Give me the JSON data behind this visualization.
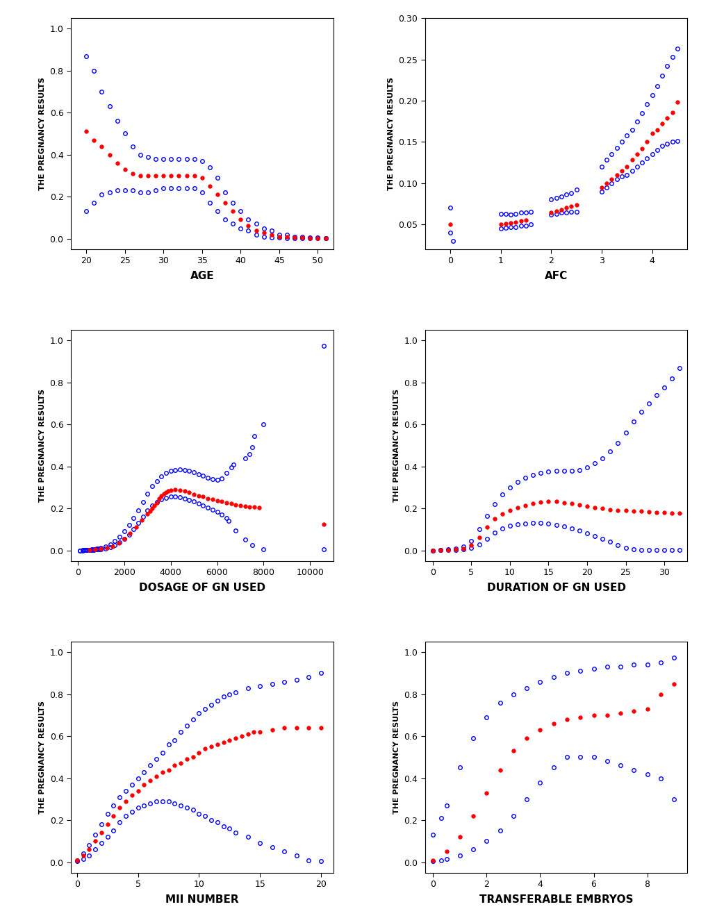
{
  "background_color": "#ffffff",
  "ylabel": "THE PREGNANCY RESULTS",
  "plots": [
    {
      "xlabel": "AGE",
      "xlim": [
        18,
        52
      ],
      "ylim": [
        -0.05,
        1.05
      ],
      "yticks": [
        0.0,
        0.2,
        0.4,
        0.6,
        0.8,
        1.0
      ],
      "xticks": [
        20,
        25,
        30,
        35,
        40,
        45,
        50
      ],
      "red_x": [
        20,
        21,
        22,
        23,
        24,
        25,
        26,
        27,
        28,
        29,
        30,
        31,
        32,
        33,
        34,
        35,
        36,
        37,
        38,
        39,
        40,
        41,
        42,
        43,
        44,
        45,
        46,
        47,
        48,
        49,
        50,
        51
      ],
      "red_y": [
        0.51,
        0.47,
        0.44,
        0.4,
        0.36,
        0.33,
        0.31,
        0.3,
        0.3,
        0.3,
        0.3,
        0.3,
        0.3,
        0.3,
        0.3,
        0.29,
        0.25,
        0.21,
        0.17,
        0.13,
        0.09,
        0.06,
        0.04,
        0.03,
        0.02,
        0.01,
        0.01,
        0.005,
        0.005,
        0.003,
        0.002,
        0.001
      ],
      "blue_upper_x": [
        20,
        21,
        22,
        23,
        24,
        25,
        26,
        27,
        28,
        29,
        30,
        31,
        32,
        33,
        34,
        35,
        36,
        37,
        38,
        39,
        40,
        41,
        42,
        43,
        44,
        45,
        46,
        47,
        48,
        49,
        50,
        51
      ],
      "blue_upper_y": [
        0.87,
        0.8,
        0.7,
        0.63,
        0.56,
        0.5,
        0.44,
        0.4,
        0.39,
        0.38,
        0.38,
        0.38,
        0.38,
        0.38,
        0.38,
        0.37,
        0.34,
        0.29,
        0.22,
        0.17,
        0.13,
        0.09,
        0.07,
        0.05,
        0.04,
        0.02,
        0.02,
        0.01,
        0.01,
        0.007,
        0.005,
        0.003
      ],
      "blue_lower_x": [
        20,
        21,
        22,
        23,
        24,
        25,
        26,
        27,
        28,
        29,
        30,
        31,
        32,
        33,
        34,
        35,
        36,
        37,
        38,
        39,
        40,
        41,
        42,
        43,
        44,
        45,
        46,
        47,
        48,
        49,
        50,
        51
      ],
      "blue_lower_y": [
        0.13,
        0.17,
        0.21,
        0.22,
        0.23,
        0.23,
        0.23,
        0.22,
        0.22,
        0.23,
        0.24,
        0.24,
        0.24,
        0.24,
        0.24,
        0.22,
        0.17,
        0.13,
        0.09,
        0.07,
        0.05,
        0.04,
        0.02,
        0.01,
        0.007,
        0.005,
        0.003,
        0.002,
        0.001,
        0.001,
        0.001,
        0.001
      ]
    },
    {
      "xlabel": "AFC",
      "xlim": [
        -0.5,
        4.7
      ],
      "ylim": [
        0.02,
        0.3
      ],
      "yticks": [
        0.05,
        0.1,
        0.15,
        0.2,
        0.25,
        0.3
      ],
      "xticks": [
        0,
        1,
        2,
        3,
        4
      ],
      "red_x": [
        0.0,
        1.0,
        1.1,
        1.2,
        1.3,
        1.4,
        1.5,
        2.0,
        2.1,
        2.2,
        2.3,
        2.4,
        2.5,
        3.0,
        3.1,
        3.2,
        3.3,
        3.4,
        3.5,
        3.6,
        3.7,
        3.8,
        3.9,
        4.0,
        4.1,
        4.2,
        4.3,
        4.4,
        4.5
      ],
      "red_y": [
        0.05,
        0.05,
        0.051,
        0.052,
        0.053,
        0.054,
        0.055,
        0.064,
        0.066,
        0.068,
        0.07,
        0.072,
        0.074,
        0.095,
        0.1,
        0.105,
        0.11,
        0.115,
        0.12,
        0.128,
        0.135,
        0.142,
        0.15,
        0.16,
        0.165,
        0.172,
        0.179,
        0.186,
        0.198
      ],
      "blue_upper_x": [
        0.0,
        0.05,
        1.0,
        1.1,
        1.2,
        1.3,
        1.4,
        1.5,
        1.6,
        2.0,
        2.1,
        2.2,
        2.3,
        2.4,
        2.5,
        3.0,
        3.1,
        3.2,
        3.3,
        3.4,
        3.5,
        3.6,
        3.7,
        3.8,
        3.9,
        4.0,
        4.1,
        4.2,
        4.3,
        4.4,
        4.5
      ],
      "blue_upper_y": [
        0.07,
        0.03,
        0.063,
        0.063,
        0.062,
        0.063,
        0.064,
        0.064,
        0.065,
        0.08,
        0.082,
        0.084,
        0.086,
        0.088,
        0.092,
        0.12,
        0.128,
        0.135,
        0.143,
        0.15,
        0.158,
        0.165,
        0.175,
        0.185,
        0.196,
        0.207,
        0.218,
        0.23,
        0.242,
        0.253,
        0.263
      ],
      "blue_lower_x": [
        0.0,
        1.0,
        1.1,
        1.2,
        1.3,
        1.4,
        1.5,
        1.6,
        2.0,
        2.1,
        2.2,
        2.3,
        2.4,
        2.5,
        3.0,
        3.1,
        3.2,
        3.3,
        3.4,
        3.5,
        3.6,
        3.7,
        3.8,
        3.9,
        4.0,
        4.1,
        4.2,
        4.3,
        4.4,
        4.5
      ],
      "blue_lower_y": [
        0.04,
        0.045,
        0.046,
        0.047,
        0.047,
        0.048,
        0.048,
        0.05,
        0.062,
        0.063,
        0.064,
        0.064,
        0.065,
        0.065,
        0.09,
        0.095,
        0.1,
        0.105,
        0.108,
        0.11,
        0.115,
        0.12,
        0.125,
        0.13,
        0.135,
        0.14,
        0.145,
        0.148,
        0.15,
        0.151
      ]
    },
    {
      "xlabel": "DOSAGE OF GN USED",
      "xlim": [
        -300,
        11000
      ],
      "ylim": [
        -0.05,
        1.05
      ],
      "yticks": [
        0.0,
        0.2,
        0.4,
        0.6,
        0.8,
        1.0
      ],
      "xticks": [
        0,
        2000,
        4000,
        6000,
        8000,
        10000
      ],
      "red_x": [
        500,
        750,
        1000,
        1250,
        1500,
        1750,
        2000,
        2250,
        2500,
        2750,
        3000,
        3100,
        3200,
        3300,
        3400,
        3500,
        3600,
        3700,
        3800,
        3900,
        4000,
        4200,
        4400,
        4600,
        4800,
        5000,
        5200,
        5400,
        5600,
        5800,
        6000,
        6200,
        6400,
        6600,
        6800,
        7000,
        7200,
        7400,
        7600,
        7800,
        10600
      ],
      "red_y": [
        0.003,
        0.005,
        0.008,
        0.012,
        0.02,
        0.035,
        0.055,
        0.08,
        0.11,
        0.145,
        0.175,
        0.188,
        0.2,
        0.214,
        0.228,
        0.248,
        0.26,
        0.27,
        0.278,
        0.283,
        0.287,
        0.289,
        0.287,
        0.282,
        0.275,
        0.268,
        0.26,
        0.255,
        0.248,
        0.242,
        0.238,
        0.232,
        0.228,
        0.222,
        0.218,
        0.213,
        0.21,
        0.208,
        0.208,
        0.205,
        0.125
      ],
      "blue_upper_x": [
        100,
        200,
        300,
        400,
        500,
        600,
        700,
        800,
        900,
        1000,
        1200,
        1400,
        1600,
        1800,
        2000,
        2200,
        2400,
        2600,
        2800,
        3000,
        3200,
        3400,
        3600,
        3800,
        4000,
        4200,
        4400,
        4600,
        4800,
        5000,
        5200,
        5400,
        5600,
        5800,
        6000,
        6200,
        6400,
        6600,
        6700,
        7200,
        7400,
        7500,
        7600,
        8000,
        10600
      ],
      "blue_upper_y": [
        0.0,
        0.001,
        0.001,
        0.002,
        0.003,
        0.004,
        0.006,
        0.008,
        0.01,
        0.013,
        0.02,
        0.03,
        0.045,
        0.065,
        0.09,
        0.12,
        0.155,
        0.19,
        0.23,
        0.27,
        0.305,
        0.33,
        0.352,
        0.368,
        0.378,
        0.382,
        0.385,
        0.383,
        0.378,
        0.372,
        0.364,
        0.355,
        0.345,
        0.338,
        0.335,
        0.342,
        0.368,
        0.395,
        0.41,
        0.44,
        0.46,
        0.49,
        0.545,
        0.6,
        0.975
      ],
      "blue_lower_x": [
        100,
        200,
        300,
        400,
        500,
        600,
        700,
        800,
        900,
        1000,
        1200,
        1400,
        1600,
        1800,
        2000,
        2200,
        2400,
        2600,
        2800,
        3000,
        3200,
        3400,
        3600,
        3800,
        4000,
        4200,
        4400,
        4600,
        4800,
        5000,
        5200,
        5400,
        5600,
        5800,
        6000,
        6200,
        6400,
        6500,
        6800,
        7200,
        7500,
        8000,
        10600
      ],
      "blue_lower_y": [
        0.0,
        0.0,
        0.001,
        0.001,
        0.001,
        0.002,
        0.003,
        0.004,
        0.005,
        0.006,
        0.01,
        0.016,
        0.024,
        0.037,
        0.055,
        0.075,
        0.1,
        0.13,
        0.16,
        0.19,
        0.213,
        0.23,
        0.242,
        0.25,
        0.255,
        0.255,
        0.252,
        0.248,
        0.24,
        0.232,
        0.222,
        0.213,
        0.203,
        0.193,
        0.183,
        0.172,
        0.155,
        0.14,
        0.095,
        0.05,
        0.025,
        0.005,
        0.005
      ]
    },
    {
      "xlabel": "DURATION OF GN USED",
      "xlim": [
        -1,
        33
      ],
      "ylim": [
        -0.05,
        1.05
      ],
      "yticks": [
        0.0,
        0.2,
        0.4,
        0.6,
        0.8,
        1.0
      ],
      "xticks": [
        0,
        5,
        10,
        15,
        20,
        25,
        30
      ],
      "red_x": [
        0,
        1,
        2,
        3,
        4,
        5,
        6,
        7,
        8,
        9,
        10,
        11,
        12,
        13,
        14,
        15,
        16,
        17,
        18,
        19,
        20,
        21,
        22,
        23,
        24,
        25,
        26,
        27,
        28,
        29,
        30,
        31,
        32
      ],
      "red_y": [
        0.0,
        0.001,
        0.002,
        0.004,
        0.01,
        0.025,
        0.06,
        0.11,
        0.15,
        0.175,
        0.19,
        0.205,
        0.215,
        0.225,
        0.23,
        0.232,
        0.232,
        0.228,
        0.223,
        0.218,
        0.21,
        0.205,
        0.2,
        0.195,
        0.192,
        0.19,
        0.188,
        0.186,
        0.183,
        0.182,
        0.18,
        0.178,
        0.178
      ],
      "blue_upper_x": [
        0,
        1,
        2,
        3,
        4,
        5,
        6,
        7,
        8,
        9,
        10,
        11,
        12,
        13,
        14,
        15,
        16,
        17,
        18,
        19,
        20,
        21,
        22,
        23,
        24,
        25,
        26,
        27,
        28,
        29,
        30,
        31,
        32
      ],
      "blue_upper_y": [
        0.0,
        0.002,
        0.004,
        0.008,
        0.018,
        0.045,
        0.1,
        0.165,
        0.22,
        0.265,
        0.3,
        0.325,
        0.345,
        0.358,
        0.368,
        0.375,
        0.378,
        0.378,
        0.378,
        0.382,
        0.395,
        0.415,
        0.44,
        0.47,
        0.51,
        0.56,
        0.615,
        0.66,
        0.7,
        0.74,
        0.775,
        0.82,
        0.87
      ],
      "blue_lower_x": [
        0,
        1,
        2,
        3,
        4,
        5,
        6,
        7,
        8,
        9,
        10,
        11,
        12,
        13,
        14,
        15,
        16,
        17,
        18,
        19,
        20,
        21,
        22,
        23,
        24,
        25,
        26,
        27,
        28,
        29,
        30,
        31,
        32
      ],
      "blue_lower_y": [
        0.0,
        0.001,
        0.001,
        0.003,
        0.006,
        0.012,
        0.028,
        0.055,
        0.085,
        0.105,
        0.118,
        0.125,
        0.128,
        0.13,
        0.13,
        0.128,
        0.122,
        0.115,
        0.105,
        0.095,
        0.08,
        0.068,
        0.055,
        0.04,
        0.025,
        0.012,
        0.005,
        0.002,
        0.001,
        0.001,
        0.001,
        0.001,
        0.001
      ]
    },
    {
      "xlabel": "MII NUMBER",
      "xlim": [
        -0.5,
        21
      ],
      "ylim": [
        -0.05,
        1.05
      ],
      "yticks": [
        0.0,
        0.2,
        0.4,
        0.6,
        0.8,
        1.0
      ],
      "xticks": [
        0,
        5,
        10,
        15,
        20
      ],
      "red_x": [
        0,
        0.5,
        1,
        1.5,
        2,
        2.5,
        3,
        3.5,
        4,
        4.5,
        5,
        5.5,
        6,
        6.5,
        7,
        7.5,
        8,
        8.5,
        9,
        9.5,
        10,
        10.5,
        11,
        11.5,
        12,
        12.5,
        13,
        13.5,
        14,
        14.5,
        15,
        16,
        17,
        18,
        19,
        20
      ],
      "red_y": [
        0.01,
        0.03,
        0.06,
        0.1,
        0.14,
        0.18,
        0.22,
        0.26,
        0.29,
        0.32,
        0.34,
        0.37,
        0.39,
        0.41,
        0.43,
        0.44,
        0.46,
        0.47,
        0.49,
        0.5,
        0.52,
        0.54,
        0.55,
        0.56,
        0.57,
        0.58,
        0.59,
        0.6,
        0.61,
        0.62,
        0.62,
        0.63,
        0.64,
        0.64,
        0.64,
        0.64
      ],
      "blue_upper_x": [
        0,
        0.5,
        1,
        1.5,
        2,
        2.5,
        3,
        3.5,
        4,
        4.5,
        5,
        5.5,
        6,
        6.5,
        7,
        7.5,
        8,
        8.5,
        9,
        9.5,
        10,
        10.5,
        11,
        11.5,
        12,
        12.5,
        13,
        14,
        15,
        16,
        17,
        18,
        19,
        20
      ],
      "blue_upper_y": [
        0.01,
        0.04,
        0.08,
        0.13,
        0.18,
        0.23,
        0.27,
        0.31,
        0.34,
        0.37,
        0.4,
        0.43,
        0.46,
        0.49,
        0.52,
        0.56,
        0.58,
        0.62,
        0.65,
        0.68,
        0.71,
        0.73,
        0.75,
        0.77,
        0.79,
        0.8,
        0.81,
        0.83,
        0.84,
        0.85,
        0.86,
        0.87,
        0.88,
        0.9
      ],
      "blue_lower_x": [
        0,
        0.5,
        1,
        1.5,
        2,
        2.5,
        3,
        3.5,
        4,
        4.5,
        5,
        5.5,
        6,
        6.5,
        7,
        7.5,
        8,
        8.5,
        9,
        9.5,
        10,
        10.5,
        11,
        11.5,
        12,
        12.5,
        13,
        14,
        15,
        16,
        17,
        18,
        19,
        20
      ],
      "blue_lower_y": [
        0.005,
        0.015,
        0.03,
        0.06,
        0.09,
        0.12,
        0.15,
        0.19,
        0.22,
        0.24,
        0.26,
        0.27,
        0.28,
        0.29,
        0.29,
        0.29,
        0.28,
        0.27,
        0.26,
        0.25,
        0.23,
        0.22,
        0.2,
        0.19,
        0.17,
        0.16,
        0.14,
        0.12,
        0.09,
        0.07,
        0.05,
        0.03,
        0.01,
        0.005
      ]
    },
    {
      "xlabel": "TRANSFERABLE EMBRYOS",
      "xlim": [
        -0.3,
        9.5
      ],
      "ylim": [
        -0.05,
        1.05
      ],
      "yticks": [
        0.0,
        0.2,
        0.4,
        0.6,
        0.8,
        1.0
      ],
      "xticks": [
        0,
        2,
        4,
        6,
        8
      ],
      "red_x": [
        0,
        0.5,
        1,
        1.5,
        2,
        2.5,
        3,
        3.5,
        4,
        4.5,
        5,
        5.5,
        6,
        6.5,
        7,
        7.5,
        8,
        8.5,
        9
      ],
      "red_y": [
        0.01,
        0.05,
        0.12,
        0.22,
        0.33,
        0.44,
        0.53,
        0.59,
        0.63,
        0.66,
        0.68,
        0.69,
        0.7,
        0.7,
        0.71,
        0.72,
        0.73,
        0.8,
        0.85
      ],
      "blue_upper_x": [
        0,
        0.3,
        0.5,
        1,
        1.5,
        2,
        2.5,
        3,
        3.5,
        4,
        4.5,
        5,
        5.5,
        6,
        6.5,
        7,
        7.5,
        8,
        8.5,
        9
      ],
      "blue_upper_y": [
        0.13,
        0.21,
        0.27,
        0.45,
        0.59,
        0.69,
        0.76,
        0.8,
        0.83,
        0.86,
        0.88,
        0.9,
        0.91,
        0.92,
        0.93,
        0.93,
        0.94,
        0.94,
        0.95,
        0.975
      ],
      "blue_lower_x": [
        0,
        0.3,
        0.5,
        1,
        1.5,
        2,
        2.5,
        3,
        3.5,
        4,
        4.5,
        5,
        5.5,
        6,
        6.5,
        7,
        7.5,
        8,
        8.5,
        9
      ],
      "blue_lower_y": [
        0.005,
        0.01,
        0.015,
        0.03,
        0.06,
        0.1,
        0.15,
        0.22,
        0.3,
        0.38,
        0.45,
        0.5,
        0.5,
        0.5,
        0.48,
        0.46,
        0.44,
        0.42,
        0.4,
        0.3
      ]
    }
  ]
}
